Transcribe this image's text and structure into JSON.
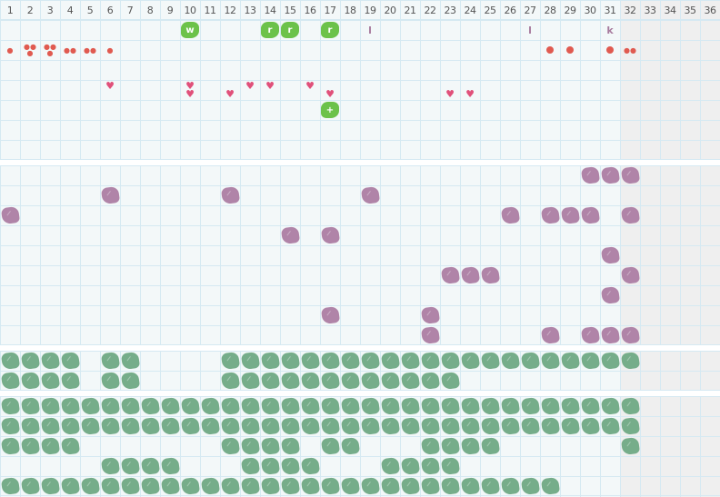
{
  "header": {
    "columns": [
      "1",
      "2",
      "3",
      "4",
      "5",
      "6",
      "7",
      "8",
      "9",
      "10",
      "11",
      "12",
      "13",
      "14",
      "15",
      "16",
      "17",
      "18",
      "19",
      "20",
      "21",
      "22",
      "23",
      "24",
      "25",
      "26",
      "27",
      "28",
      "29",
      "30",
      "31",
      "32",
      "33",
      "34",
      "35",
      "36"
    ]
  },
  "colors": {
    "background": "#f3f8f9",
    "grid": "#d5e9f2",
    "disabled_columns": "#efefef",
    "tag_green": "#6cc24a",
    "purple": "#b084a8",
    "green": "#76ad8a",
    "red": "#e05a50",
    "heart": "#e0507a",
    "letter": "#a77b9e"
  },
  "disabled_from_column": 32,
  "top_section": {
    "rows": [
      [
        {
          "col": 10,
          "type": "tag",
          "label": "w"
        },
        {
          "col": 14,
          "type": "tag",
          "label": "r"
        },
        {
          "col": 15,
          "type": "tag",
          "label": "r"
        },
        {
          "col": 17,
          "type": "tag",
          "label": "r"
        },
        {
          "col": 19,
          "type": "letter",
          "label": "l"
        },
        {
          "col": 27,
          "type": "letter",
          "label": "l"
        },
        {
          "col": 31,
          "type": "letter",
          "label": "k"
        }
      ],
      [
        {
          "col": 1,
          "type": "drops",
          "count": 1
        },
        {
          "col": 2,
          "type": "drops",
          "count": 3
        },
        {
          "col": 3,
          "type": "drops",
          "count": 3
        },
        {
          "col": 4,
          "type": "drops",
          "count": 2
        },
        {
          "col": 5,
          "type": "drops",
          "count": 2
        },
        {
          "col": 6,
          "type": "drops",
          "count": 1
        },
        {
          "col": 28,
          "type": "dot"
        },
        {
          "col": 29,
          "type": "dot"
        },
        {
          "col": 31,
          "type": "dot"
        },
        {
          "col": 32,
          "type": "drops",
          "count": 2
        }
      ],
      [],
      [
        {
          "col": 6,
          "type": "heart",
          "count": 1,
          "pos": "top"
        },
        {
          "col": 10,
          "type": "heart",
          "count": 2
        },
        {
          "col": 12,
          "type": "heart",
          "count": 1,
          "pos": "bottom"
        },
        {
          "col": 13,
          "type": "heart",
          "count": 1,
          "pos": "top"
        },
        {
          "col": 14,
          "type": "heart",
          "count": 1,
          "pos": "top"
        },
        {
          "col": 16,
          "type": "heart",
          "count": 1,
          "pos": "top"
        },
        {
          "col": 17,
          "type": "heart",
          "count": 1,
          "pos": "bottom"
        },
        {
          "col": 23,
          "type": "heart",
          "count": 1,
          "pos": "bottom"
        },
        {
          "col": 24,
          "type": "heart",
          "count": 1,
          "pos": "bottom"
        }
      ],
      [
        {
          "col": 17,
          "type": "tag",
          "label": "+"
        }
      ],
      [],
      []
    ]
  },
  "purple_section": {
    "rows": [
      [
        30,
        31,
        32
      ],
      [
        6,
        12,
        19
      ],
      [
        1,
        26,
        28,
        29,
        30,
        32
      ],
      [
        15,
        17
      ],
      [
        31
      ],
      [
        23,
        24,
        25,
        32
      ],
      [
        31
      ],
      [
        17,
        22
      ],
      [
        22,
        28,
        30,
        31,
        32
      ]
    ]
  },
  "green_section_a": {
    "rows": [
      [
        1,
        2,
        3,
        4,
        6,
        7,
        12,
        13,
        14,
        15,
        16,
        17,
        18,
        19,
        20,
        21,
        22,
        23,
        24,
        25,
        26,
        27,
        28,
        29,
        30,
        31,
        32
      ],
      [
        1,
        2,
        3,
        4,
        6,
        7,
        12,
        13,
        14,
        15,
        16,
        17,
        18,
        19,
        20,
        21,
        22,
        23
      ]
    ]
  },
  "green_section_b": {
    "rows": [
      [
        1,
        2,
        3,
        4,
        5,
        6,
        7,
        8,
        9,
        10,
        11,
        12,
        13,
        14,
        15,
        16,
        17,
        18,
        19,
        20,
        21,
        22,
        23,
        24,
        25,
        26,
        27,
        28,
        29,
        30,
        31,
        32
      ],
      [
        1,
        2,
        3,
        4,
        5,
        6,
        7,
        8,
        9,
        10,
        11,
        12,
        13,
        14,
        15,
        16,
        17,
        18,
        19,
        20,
        21,
        22,
        23,
        24,
        25,
        26,
        27,
        28,
        29,
        30,
        31,
        32
      ],
      [
        1,
        2,
        3,
        4,
        12,
        13,
        14,
        15,
        17,
        18,
        22,
        23,
        24,
        25,
        32
      ],
      [
        6,
        7,
        8,
        9,
        13,
        14,
        15,
        16,
        20,
        21,
        22,
        23
      ],
      [
        1,
        2,
        3,
        4,
        5,
        6,
        7,
        8,
        9,
        10,
        11,
        12,
        13,
        14,
        15,
        16,
        17,
        18,
        19,
        20,
        21,
        22,
        23,
        24,
        25,
        26,
        27,
        28
      ]
    ]
  }
}
